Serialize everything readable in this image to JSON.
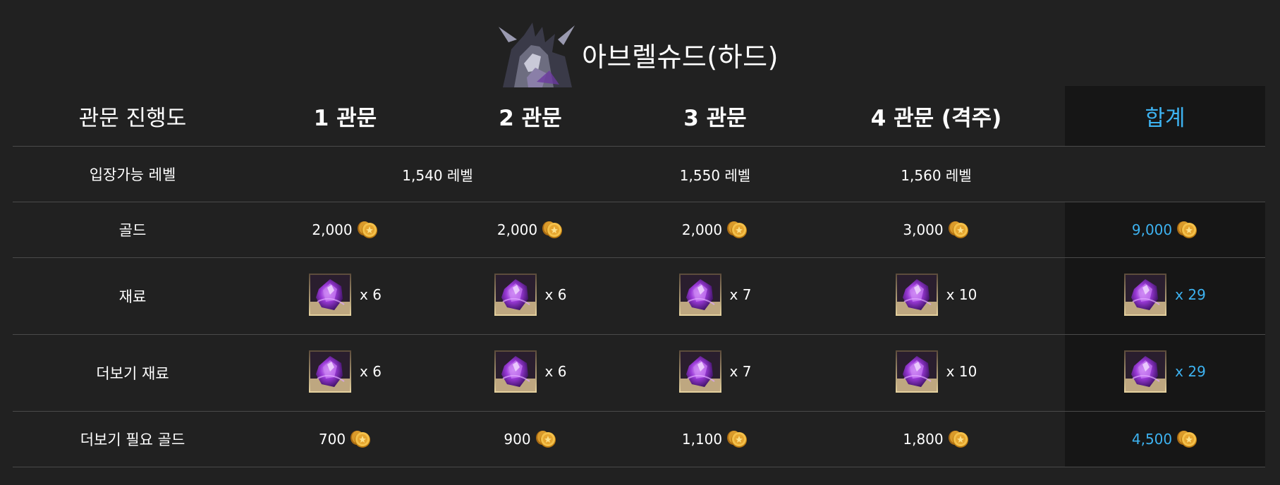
{
  "title": "아브렐슈드(하드)",
  "boss_portrait_icon": "abrelshud-boss-portrait",
  "accent_color": "#3db2f0",
  "header": {
    "row_label": "관문 진행도",
    "gates": [
      "1 관문",
      "2 관문",
      "3 관문",
      "4 관문 (격주)"
    ],
    "total": "합계"
  },
  "rows": {
    "level": {
      "label": "입장가능 레벨",
      "gate12": "1,540 레벨",
      "gate3": "1,550 레벨",
      "gate4": "1,560 레벨"
    },
    "gold": {
      "label": "골드",
      "values": [
        "2,000",
        "2,000",
        "2,000",
        "3,000"
      ],
      "total": "9,000"
    },
    "material": {
      "label": "재료",
      "values": [
        "x 6",
        "x 6",
        "x 7",
        "x 10"
      ],
      "total": "x 29"
    },
    "more_material": {
      "label": "더보기 재료",
      "values": [
        "x 6",
        "x 6",
        "x 7",
        "x 10"
      ],
      "total": "x 29"
    },
    "more_gold": {
      "label": "더보기 필요 골드",
      "values": [
        "700",
        "900",
        "1,100",
        "1,800"
      ],
      "total": "4,500"
    }
  }
}
